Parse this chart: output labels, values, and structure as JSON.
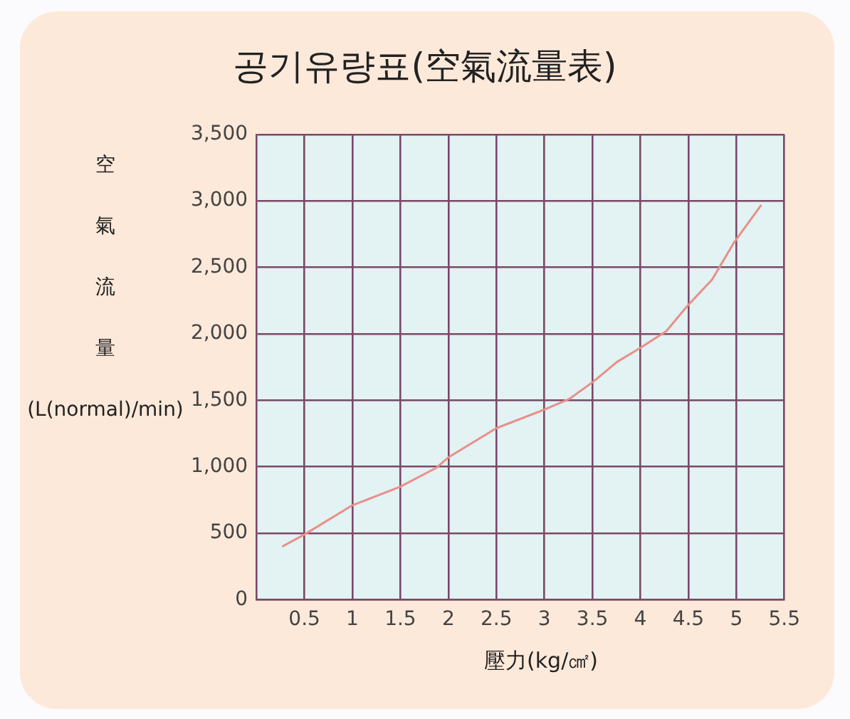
{
  "chart_data": {
    "type": "line",
    "title": "공기유량표(空氣流量表)",
    "xlabel": "壓力(kg/㎠)",
    "ylabel": "空氣流量(L(normal)/min)",
    "x": [
      0.27,
      0.5,
      1.0,
      1.5,
      1.87,
      2.0,
      2.25,
      2.5,
      3.0,
      3.26,
      3.51,
      3.76,
      3.99,
      4.27,
      4.49,
      4.75,
      4.97,
      5.26
    ],
    "series": [
      {
        "color": "#e8908a",
        "values": [
          400,
          490,
          710,
          850,
          990,
          1070,
          1180,
          1290,
          1430,
          1510,
          1640,
          1790,
          1890,
          2020,
          2210,
          2410,
          2680,
          2970
        ]
      }
    ],
    "xlim": [
      0,
      5.5
    ],
    "xticks": [
      0.5,
      1,
      1.5,
      2,
      2.5,
      3,
      3.5,
      4,
      4.5,
      5,
      5.5
    ],
    "ylim": [
      0,
      3500
    ],
    "yticks": [
      0,
      {
        "value": 500,
        "label": "500"
      },
      {
        "value": 1000,
        "label": "1,000"
      },
      {
        "value": 1500,
        "label": "1,500"
      },
      {
        "value": 2000,
        "label": "2,000"
      },
      {
        "value": 2500,
        "label": "2,500"
      },
      {
        "value": 3000,
        "label": "3,000"
      },
      {
        "value": 3500,
        "label": "3,500"
      }
    ],
    "grid": true,
    "legend": false
  }
}
